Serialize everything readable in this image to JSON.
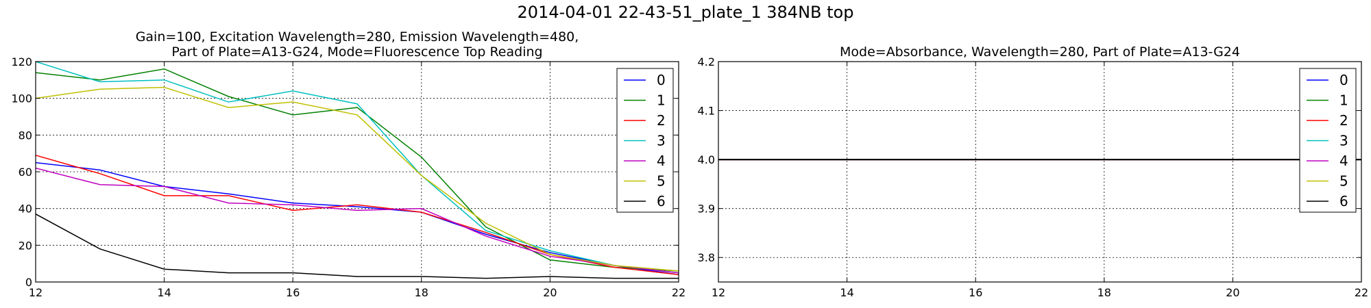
{
  "figure": {
    "title": "2014-04-01 22-43-51_plate_1 384NB top"
  },
  "colors": {
    "0": "#0000ff",
    "1": "#008000",
    "2": "#ff0000",
    "3": "#00bfbf",
    "4": "#bf00bf",
    "5": "#bfbf00",
    "6": "#000000"
  },
  "chart_data": [
    {
      "type": "line",
      "title_lines": [
        "Gain=100, Excitation Wavelength=280, Emission Wavelength=480,",
        "Part of Plate=A13-G24, Mode=Fluorescence Top Reading"
      ],
      "xlim": [
        12,
        22
      ],
      "ylim": [
        0,
        120
      ],
      "xticks": [
        "12",
        "14",
        "16",
        "18",
        "20",
        "22"
      ],
      "yticks": [
        "0",
        "20",
        "40",
        "60",
        "80",
        "100",
        "120"
      ],
      "grid": true,
      "legend": "top-right",
      "x": [
        12,
        13,
        14,
        15,
        16,
        17,
        18,
        19,
        20,
        21,
        22
      ],
      "series": [
        {
          "name": "0",
          "values": [
            65,
            61,
            52,
            48,
            43,
            41,
            38,
            26,
            16,
            9,
            4
          ]
        },
        {
          "name": "1",
          "values": [
            114,
            110,
            116,
            101,
            91,
            95,
            68,
            30,
            12,
            8,
            6
          ]
        },
        {
          "name": "2",
          "values": [
            69,
            59,
            47,
            47,
            39,
            42,
            38,
            27,
            15,
            8,
            4
          ]
        },
        {
          "name": "3",
          "values": [
            120,
            109,
            110,
            98,
            104,
            97,
            58,
            28,
            17,
            9,
            5
          ]
        },
        {
          "name": "4",
          "values": [
            62,
            53,
            52,
            43,
            42,
            39,
            40,
            25,
            14,
            9,
            5
          ]
        },
        {
          "name": "5",
          "values": [
            100,
            105,
            106,
            95,
            98,
            91,
            58,
            32,
            15,
            9,
            6
          ]
        },
        {
          "name": "6",
          "values": [
            37,
            18,
            7,
            5,
            5,
            3,
            3,
            2,
            3,
            2,
            2
          ]
        }
      ]
    },
    {
      "type": "line",
      "title_lines": [
        "Mode=Absorbance, Wavelength=280, Part of Plate=A13-G24"
      ],
      "xlim": [
        12,
        22
      ],
      "ylim": [
        3.75,
        4.2
      ],
      "xticks": [
        "12",
        "14",
        "16",
        "18",
        "20",
        "22"
      ],
      "yticks": [
        "3.8",
        "3.9",
        "4.0",
        "4.1",
        "4.2"
      ],
      "grid": true,
      "legend": "top-right",
      "x": [
        12,
        13,
        14,
        15,
        16,
        17,
        18,
        19,
        20,
        21,
        22
      ],
      "series": [
        {
          "name": "0",
          "values": [
            4.0,
            4.0,
            4.0,
            4.0,
            4.0,
            4.0,
            4.0,
            4.0,
            4.0,
            4.0,
            4.0
          ]
        },
        {
          "name": "1",
          "values": [
            4.0,
            4.0,
            4.0,
            4.0,
            4.0,
            4.0,
            4.0,
            4.0,
            4.0,
            4.0,
            4.0
          ]
        },
        {
          "name": "2",
          "values": [
            4.0,
            4.0,
            4.0,
            4.0,
            4.0,
            4.0,
            4.0,
            4.0,
            4.0,
            4.0,
            4.0
          ]
        },
        {
          "name": "3",
          "values": [
            4.0,
            4.0,
            4.0,
            4.0,
            4.0,
            4.0,
            4.0,
            4.0,
            4.0,
            4.0,
            4.0
          ]
        },
        {
          "name": "4",
          "values": [
            4.0,
            4.0,
            4.0,
            4.0,
            4.0,
            4.0,
            4.0,
            4.0,
            4.0,
            4.0,
            4.0
          ]
        },
        {
          "name": "5",
          "values": [
            4.0,
            4.0,
            4.0,
            4.0,
            4.0,
            4.0,
            4.0,
            4.0,
            4.0,
            4.0,
            4.0
          ]
        },
        {
          "name": "6",
          "values": [
            4.0,
            4.0,
            4.0,
            4.0,
            4.0,
            4.0,
            4.0,
            4.0,
            4.0,
            4.0,
            4.0
          ]
        }
      ]
    }
  ]
}
